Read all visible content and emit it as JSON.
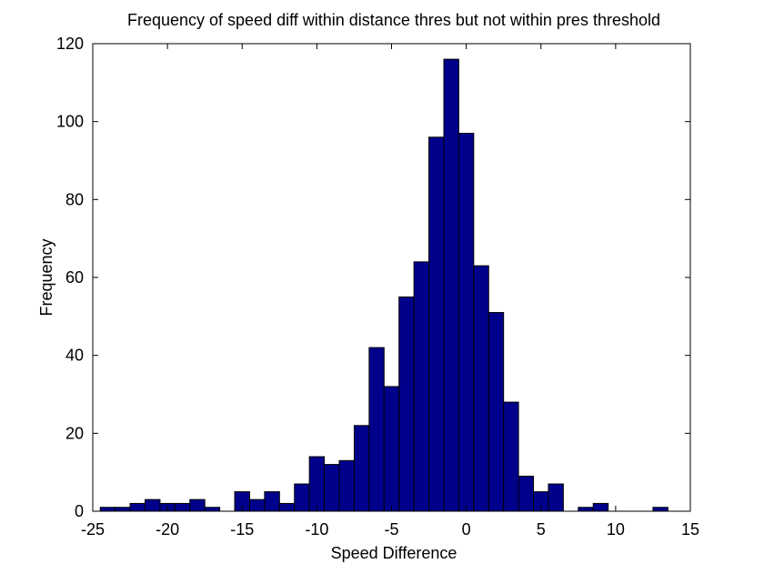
{
  "chart_data": {
    "type": "bar",
    "title": "Frequency of speed diff within distance thres but not within pres threshold",
    "xlabel": "Speed Difference",
    "ylabel": "Frequency",
    "xlim": [
      -25,
      15
    ],
    "ylim": [
      0,
      120
    ],
    "xticks": [
      -25,
      -20,
      -15,
      -10,
      -5,
      0,
      5,
      10,
      15
    ],
    "yticks": [
      0,
      20,
      40,
      60,
      80,
      100,
      120
    ],
    "grid": false,
    "bar_color": "#00008b",
    "edge_color": "#000000",
    "bins": [
      {
        "x0": -24.5,
        "x1": -23.5,
        "value": 1
      },
      {
        "x0": -23.5,
        "x1": -22.5,
        "value": 1
      },
      {
        "x0": -22.5,
        "x1": -21.5,
        "value": 2
      },
      {
        "x0": -21.5,
        "x1": -20.5,
        "value": 3
      },
      {
        "x0": -20.5,
        "x1": -19.5,
        "value": 2
      },
      {
        "x0": -19.5,
        "x1": -18.5,
        "value": 2
      },
      {
        "x0": -18.5,
        "x1": -17.5,
        "value": 3
      },
      {
        "x0": -17.5,
        "x1": -16.5,
        "value": 1
      },
      {
        "x0": -16.5,
        "x1": -15.5,
        "value": 0
      },
      {
        "x0": -15.5,
        "x1": -14.5,
        "value": 5
      },
      {
        "x0": -14.5,
        "x1": -13.5,
        "value": 3
      },
      {
        "x0": -13.5,
        "x1": -12.5,
        "value": 5
      },
      {
        "x0": -12.5,
        "x1": -11.5,
        "value": 2
      },
      {
        "x0": -11.5,
        "x1": -10.5,
        "value": 7
      },
      {
        "x0": -10.5,
        "x1": -9.5,
        "value": 14
      },
      {
        "x0": -9.5,
        "x1": -8.5,
        "value": 12
      },
      {
        "x0": -8.5,
        "x1": -7.5,
        "value": 13
      },
      {
        "x0": -7.5,
        "x1": -6.5,
        "value": 22
      },
      {
        "x0": -6.5,
        "x1": -5.5,
        "value": 42
      },
      {
        "x0": -5.5,
        "x1": -4.5,
        "value": 32
      },
      {
        "x0": -4.5,
        "x1": -3.5,
        "value": 55
      },
      {
        "x0": -3.5,
        "x1": -2.5,
        "value": 64
      },
      {
        "x0": -2.5,
        "x1": -1.5,
        "value": 96
      },
      {
        "x0": -1.5,
        "x1": -0.5,
        "value": 116
      },
      {
        "x0": -0.5,
        "x1": 0.5,
        "value": 97
      },
      {
        "x0": 0.5,
        "x1": 1.5,
        "value": 63
      },
      {
        "x0": 1.5,
        "x1": 2.5,
        "value": 51
      },
      {
        "x0": 2.5,
        "x1": 3.5,
        "value": 28
      },
      {
        "x0": 3.5,
        "x1": 4.5,
        "value": 9
      },
      {
        "x0": 4.5,
        "x1": 5.5,
        "value": 5
      },
      {
        "x0": 5.5,
        "x1": 6.5,
        "value": 7
      },
      {
        "x0": 6.5,
        "x1": 7.5,
        "value": 0
      },
      {
        "x0": 7.5,
        "x1": 8.5,
        "value": 1
      },
      {
        "x0": 8.5,
        "x1": 9.5,
        "value": 2
      },
      {
        "x0": 9.5,
        "x1": 10.5,
        "value": 0
      },
      {
        "x0": 10.5,
        "x1": 11.5,
        "value": 0
      },
      {
        "x0": 11.5,
        "x1": 12.5,
        "value": 0
      },
      {
        "x0": 12.5,
        "x1": 13.5,
        "value": 1
      }
    ]
  }
}
